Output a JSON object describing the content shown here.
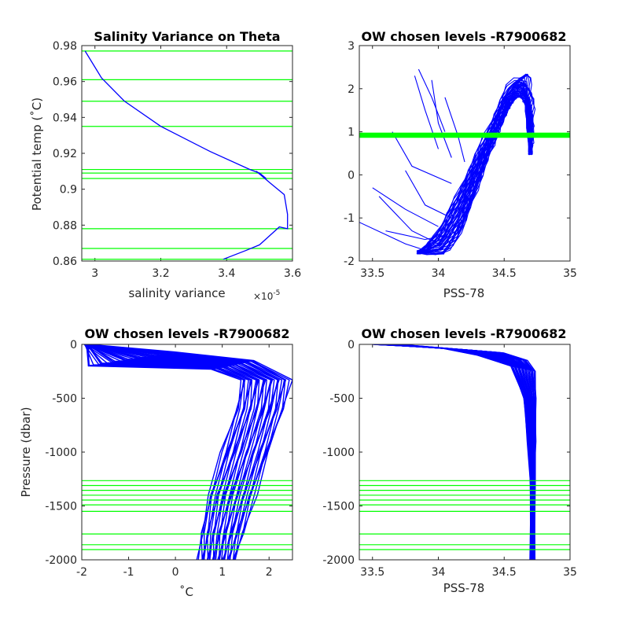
{
  "colors": {
    "profile": "#0000ff",
    "level": "#00ff00",
    "axis": "#262626"
  },
  "chart_data": [
    {
      "type": "line",
      "title": "Salinity Variance on Theta",
      "xlabel": "salinity variance",
      "x_exponent": "×10",
      "x_exponent_power": "-5",
      "ylabel": "Potential temp (˚C)",
      "xlim": [
        2.96,
        3.6
      ],
      "ylim": [
        0.86,
        0.98
      ],
      "xticks": [
        3,
        3.2,
        3.4,
        3.6
      ],
      "xtick_labels": [
        "3",
        "3.2",
        "3.4",
        "3.6"
      ],
      "yticks": [
        0.86,
        0.88,
        0.9,
        0.92,
        0.94,
        0.96,
        0.98
      ],
      "ytick_labels": [
        "0.86",
        "0.88",
        "0.9",
        "0.92",
        "0.94",
        "0.96",
        "0.98"
      ],
      "series": [
        {
          "x": [
            2.97,
            3.02,
            3.09,
            3.2,
            3.35,
            3.47,
            3.5,
            3.52,
            3.49,
            3.535,
            3.575,
            3.585,
            3.585,
            3.56,
            3.53,
            3.5,
            3.46,
            3.39
          ],
          "y": [
            0.977,
            0.962,
            0.949,
            0.935,
            0.921,
            0.911,
            0.909,
            0.906,
            0.91,
            0.903,
            0.897,
            0.886,
            0.878,
            0.879,
            0.874,
            0.869,
            0.866,
            0.861
          ]
        }
      ],
      "hlines": [
        0.977,
        0.961,
        0.949,
        0.935,
        0.911,
        0.909,
        0.906,
        0.878,
        0.867,
        0.861
      ]
    },
    {
      "type": "line",
      "title": "OW chosen levels -R7900682",
      "xlabel": "PSS-78",
      "ylabel": "",
      "xlim": [
        33.4,
        35
      ],
      "ylim": [
        -2,
        3
      ],
      "xticks": [
        33.5,
        34,
        34.5,
        35
      ],
      "xtick_labels": [
        "33.5",
        "34",
        "34.5",
        "35"
      ],
      "yticks": [
        -2,
        -1,
        0,
        1,
        2,
        3
      ],
      "ytick_labels": [
        "-2",
        "-1",
        "0",
        "1",
        "2",
        "3"
      ],
      "band": [
        0.86,
        0.98
      ],
      "profile_envelope": {
        "upper": {
          "x": [
            33.85,
            34.0,
            34.2,
            34.4,
            34.55,
            34.68,
            34.72,
            34.72,
            34.7
          ],
          "y": [
            -1.8,
            -1.3,
            -0.1,
            1.2,
            2.2,
            2.35,
            1.8,
            1.0,
            0.5
          ]
        },
        "lower": {
          "x": [
            33.85,
            34.05,
            34.15,
            34.25,
            34.35,
            34.45,
            34.5,
            34.55,
            34.65,
            34.7
          ],
          "y": [
            -1.8,
            -1.85,
            -1.5,
            -0.7,
            0.2,
            1.0,
            1.5,
            2.0,
            2.3,
            0.5
          ]
        }
      },
      "stray_lines": [
        {
          "x": [
            33.4,
            33.75,
            33.95
          ],
          "y": [
            -1.1,
            -1.6,
            -1.8
          ]
        },
        {
          "x": [
            33.5,
            33.75,
            34.0
          ],
          "y": [
            -0.3,
            -0.8,
            -1.2
          ]
        },
        {
          "x": [
            33.55,
            33.8,
            34.0
          ],
          "y": [
            -0.5,
            -1.3,
            -1.6
          ]
        },
        {
          "x": [
            33.65,
            33.8,
            34.1
          ],
          "y": [
            1.0,
            0.2,
            -0.2
          ]
        },
        {
          "x": [
            33.75,
            33.9,
            34.1
          ],
          "y": [
            0.1,
            -0.7,
            -1.0
          ]
        },
        {
          "x": [
            33.82,
            33.9,
            34.0
          ],
          "y": [
            2.3,
            1.5,
            0.6
          ]
        },
        {
          "x": [
            33.85,
            33.95,
            34.05
          ],
          "y": [
            2.45,
            1.8,
            1.0
          ]
        },
        {
          "x": [
            33.95,
            34.0,
            34.1
          ],
          "y": [
            2.2,
            1.2,
            0.4
          ]
        },
        {
          "x": [
            34.05,
            34.15,
            34.2
          ],
          "y": [
            1.8,
            0.9,
            0.3
          ]
        },
        {
          "x": [
            33.6,
            33.9,
            34.05
          ],
          "y": [
            -1.3,
            -1.5,
            -1.4
          ]
        }
      ]
    },
    {
      "type": "line",
      "title": "OW chosen levels -R7900682",
      "xlabel": "˚C",
      "ylabel": "Pressure (dbar)",
      "xlim": [
        -2,
        2.5
      ],
      "ylim": [
        -2000,
        0
      ],
      "xticks": [
        -2,
        -1,
        0,
        1,
        2
      ],
      "xtick_labels": [
        "-2",
        "-1",
        "0",
        "1",
        "2"
      ],
      "yticks": [
        -2000,
        -1500,
        -1000,
        -500,
        0
      ],
      "ytick_labels": [
        "-2000",
        "-1500",
        "-1000",
        "-500",
        "0"
      ],
      "profile_envelope": {
        "left": {
          "x": [
            -1.9,
            -1.9,
            0.8,
            1.4,
            1.3,
            1.0,
            0.7,
            0.55,
            0.5
          ],
          "y": [
            0,
            -200,
            -230,
            -330,
            -600,
            -1000,
            -1400,
            -1750,
            -2000
          ]
        },
        "right": {
          "x": [
            -1.9,
            0.0,
            1.7,
            2.45,
            2.3,
            2.0,
            1.7,
            1.45,
            1.3
          ],
          "y": [
            0,
            -70,
            -150,
            -330,
            -600,
            -1000,
            -1400,
            -1750,
            -2000
          ]
        }
      },
      "hlines": [
        -1265,
        -1310,
        -1355,
        -1400,
        -1445,
        -1490,
        -1550,
        -1760,
        -1860,
        -1905
      ]
    },
    {
      "type": "line",
      "title": "OW chosen levels -R7900682",
      "xlabel": "PSS-78",
      "ylabel": "",
      "xlim": [
        33.4,
        35
      ],
      "ylim": [
        -2000,
        0
      ],
      "xticks": [
        33.5,
        34,
        34.5,
        35
      ],
      "xtick_labels": [
        "33.5",
        "34",
        "34.5",
        "35"
      ],
      "yticks": [
        -2000,
        -1500,
        -1000,
        -500,
        0
      ],
      "ytick_labels": [
        "-2000",
        "-1500",
        "-1000",
        "-500",
        "0"
      ],
      "profile_envelope": {
        "left": {
          "x": [
            33.5,
            34.0,
            34.3,
            34.55,
            34.65,
            34.68,
            34.7,
            34.7
          ],
          "y": [
            0,
            -30,
            -100,
            -200,
            -500,
            -900,
            -1300,
            -2000
          ]
        },
        "right": {
          "x": [
            33.7,
            34.5,
            34.68,
            34.73,
            34.74,
            34.74,
            34.73,
            34.73
          ],
          "y": [
            0,
            -80,
            -150,
            -250,
            -500,
            -900,
            -1300,
            -2000
          ]
        }
      },
      "hlines": [
        -1265,
        -1310,
        -1355,
        -1400,
        -1445,
        -1490,
        -1550,
        -1760,
        -1860,
        -1905
      ]
    }
  ]
}
